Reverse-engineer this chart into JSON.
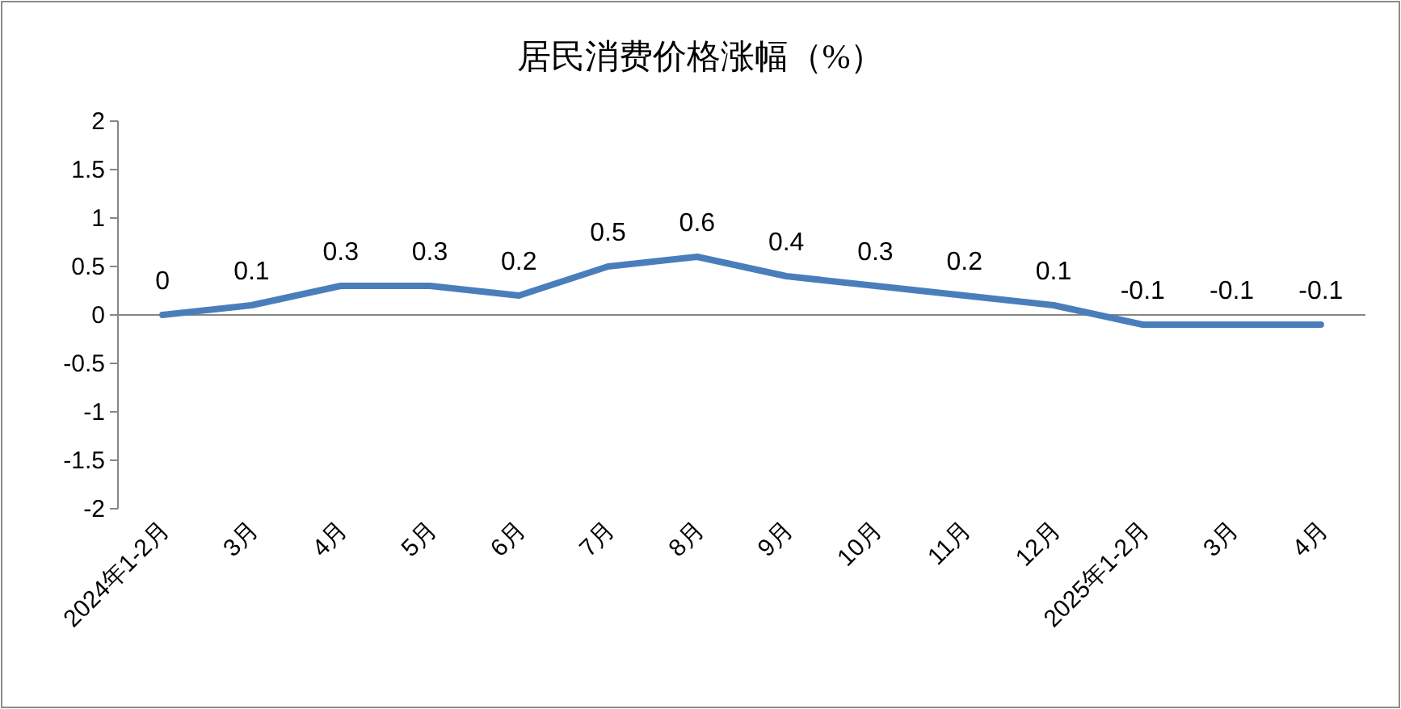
{
  "chart_data": {
    "type": "line",
    "title": "居民消费价格涨幅（%）",
    "categories": [
      "2024年1-2月",
      "3月",
      "4月",
      "5月",
      "6月",
      "7月",
      "8月",
      "9月",
      "10月",
      "11月",
      "12月",
      "2025年1-2月",
      "3月",
      "4月"
    ],
    "series": [
      {
        "color": "#4a7ebb",
        "values": [
          0,
          0.1,
          0.3,
          0.3,
          0.2,
          0.5,
          0.6,
          0.4,
          0.3,
          0.2,
          0.1,
          -0.1,
          -0.1,
          -0.1
        ]
      }
    ],
    "ylim": [
      -2,
      2
    ],
    "yticks": [
      -2,
      -1.5,
      -1,
      -0.5,
      0,
      0.5,
      1,
      1.5,
      2
    ],
    "data_labels": true
  }
}
